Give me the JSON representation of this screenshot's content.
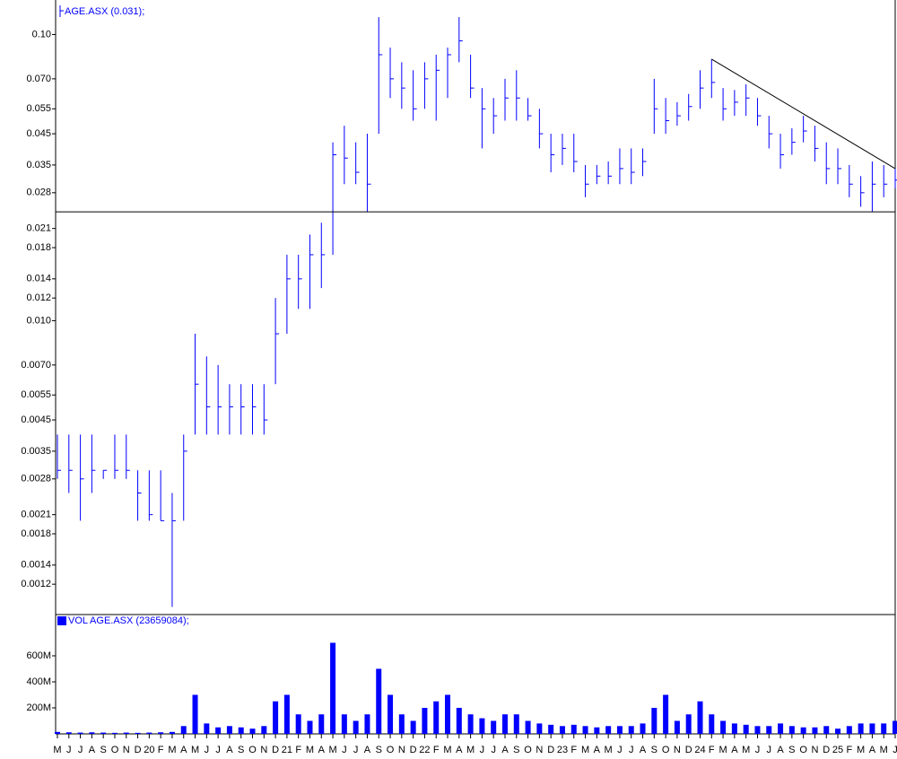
{
  "chart_data": [
    {
      "type": "ohlc",
      "log_scale": true,
      "ylim": [
        0.00094,
        0.132
      ],
      "yticks": [
        {
          "value": 0.1,
          "label": "0.10"
        },
        {
          "value": 0.07,
          "label": "0.070"
        },
        0.055,
        0.045,
        0.035,
        0.028,
        0.021,
        0.018,
        0.014,
        0.012,
        {
          "value": 0.01,
          "label": "0.010"
        },
        {
          "value": 0.007,
          "label": "0.0070"
        },
        0.0055,
        0.0045,
        0.0035,
        0.0028,
        0.0021,
        0.0018,
        0.0014,
        0.0012
      ],
      "horizontal_line": 0.024,
      "trend_line": {
        "x": [
          57,
          73
        ],
        "y": [
          0.082,
          0.034
        ]
      },
      "series": [
        {
          "name": "AGE.ASX (0.031);",
          "color": "#0000ff",
          "high": [
            0.004,
            0.004,
            0.004,
            0.004,
            0.003,
            0.004,
            0.004,
            0.003,
            0.003,
            0.003,
            0.0025,
            0.004,
            0.009,
            0.0075,
            0.007,
            0.006,
            0.006,
            0.006,
            0.006,
            0.012,
            0.017,
            0.017,
            0.02,
            0.022,
            0.042,
            0.048,
            0.042,
            0.045,
            0.115,
            0.09,
            0.08,
            0.075,
            0.08,
            0.085,
            0.09,
            0.115,
            0.085,
            0.065,
            0.06,
            0.07,
            0.075,
            0.06,
            0.055,
            0.045,
            0.045,
            0.045,
            0.035,
            0.035,
            0.036,
            0.04,
            0.04,
            0.04,
            0.07,
            0.06,
            0.058,
            0.062,
            0.075,
            0.082,
            0.065,
            0.064,
            0.067,
            0.06,
            0.052,
            0.045,
            0.047,
            0.052,
            0.048,
            0.042,
            0.04,
            0.035,
            0.032,
            0.036,
            0.035,
            0.034
          ],
          "low": [
            0.0028,
            0.0025,
            0.002,
            0.0025,
            0.0028,
            0.0028,
            0.0028,
            0.002,
            0.002,
            0.002,
            0.001,
            0.002,
            0.004,
            0.004,
            0.004,
            0.004,
            0.004,
            0.004,
            0.004,
            0.006,
            0.009,
            0.011,
            0.011,
            0.013,
            0.017,
            0.03,
            0.03,
            0.024,
            0.045,
            0.06,
            0.055,
            0.05,
            0.055,
            0.05,
            0.06,
            0.08,
            0.06,
            0.04,
            0.045,
            0.05,
            0.05,
            0.05,
            0.04,
            0.033,
            0.035,
            0.033,
            0.027,
            0.03,
            0.03,
            0.03,
            0.03,
            0.032,
            0.045,
            0.045,
            0.048,
            0.05,
            0.055,
            0.06,
            0.05,
            0.052,
            0.052,
            0.048,
            0.04,
            0.034,
            0.038,
            0.042,
            0.036,
            0.03,
            0.03,
            0.027,
            0.025,
            0.024,
            0.027,
            0.029
          ],
          "close": [
            0.003,
            0.003,
            0.0028,
            0.003,
            0.003,
            0.003,
            0.003,
            0.0025,
            0.0021,
            0.002,
            0.002,
            0.0035,
            0.006,
            0.005,
            0.005,
            0.005,
            0.005,
            0.005,
            0.0045,
            0.009,
            0.014,
            0.014,
            0.017,
            0.017,
            0.038,
            0.037,
            0.033,
            0.03,
            0.085,
            0.07,
            0.065,
            0.055,
            0.07,
            0.075,
            0.085,
            0.095,
            0.065,
            0.055,
            0.052,
            0.06,
            0.06,
            0.052,
            0.045,
            0.038,
            0.04,
            0.036,
            0.03,
            0.032,
            0.032,
            0.034,
            0.033,
            0.036,
            0.055,
            0.05,
            0.052,
            0.056,
            0.065,
            0.068,
            0.055,
            0.058,
            0.06,
            0.052,
            0.045,
            0.038,
            0.042,
            0.046,
            0.04,
            0.034,
            0.034,
            0.03,
            0.028,
            0.03,
            0.03,
            0.031
          ]
        }
      ]
    },
    {
      "type": "bar",
      "ylim": [
        0,
        917000000
      ],
      "yticks": [
        {
          "value": 600000000,
          "label": "600M"
        },
        {
          "value": 400000000,
          "label": "400M"
        },
        {
          "value": 200000000,
          "label": "200M"
        }
      ],
      "categories": [
        "M",
        "J",
        "J",
        "A",
        "S",
        "O",
        "N",
        "D",
        "20",
        "F",
        "M",
        "A",
        "M",
        "J",
        "J",
        "A",
        "S",
        "O",
        "N",
        "D",
        "21",
        "F",
        "M",
        "A",
        "M",
        "J",
        "J",
        "A",
        "S",
        "O",
        "N",
        "D",
        "22",
        "F",
        "M",
        "A",
        "M",
        "J",
        "J",
        "A",
        "S",
        "O",
        "N",
        "D",
        "23",
        "F",
        "M",
        "A",
        "M",
        "J",
        "J",
        "A",
        "S",
        "O",
        "N",
        "D",
        "24",
        "F",
        "M",
        "A",
        "M",
        "J",
        "J",
        "A",
        "S",
        "O",
        "N",
        "D",
        "25",
        "F",
        "M",
        "A",
        "M",
        "J"
      ],
      "series": [
        {
          "name": "VOL AGE.ASX (23659084);",
          "color": "#0000ff",
          "values": [
            15000000,
            12000000,
            10000000,
            12000000,
            10000000,
            8000000,
            10000000,
            8000000,
            10000000,
            12000000,
            15000000,
            60000000,
            300000000,
            80000000,
            50000000,
            60000000,
            50000000,
            40000000,
            60000000,
            250000000,
            300000000,
            150000000,
            100000000,
            150000000,
            700000000,
            150000000,
            100000000,
            150000000,
            500000000,
            300000000,
            150000000,
            100000000,
            200000000,
            250000000,
            300000000,
            200000000,
            150000000,
            120000000,
            100000000,
            150000000,
            150000000,
            100000000,
            80000000,
            70000000,
            60000000,
            70000000,
            60000000,
            50000000,
            60000000,
            60000000,
            60000000,
            80000000,
            200000000,
            300000000,
            100000000,
            150000000,
            250000000,
            150000000,
            100000000,
            80000000,
            70000000,
            60000000,
            60000000,
            80000000,
            60000000,
            50000000,
            50000000,
            60000000,
            40000000,
            60000000,
            80000000,
            80000000,
            80000000,
            100000000
          ]
        }
      ]
    }
  ]
}
